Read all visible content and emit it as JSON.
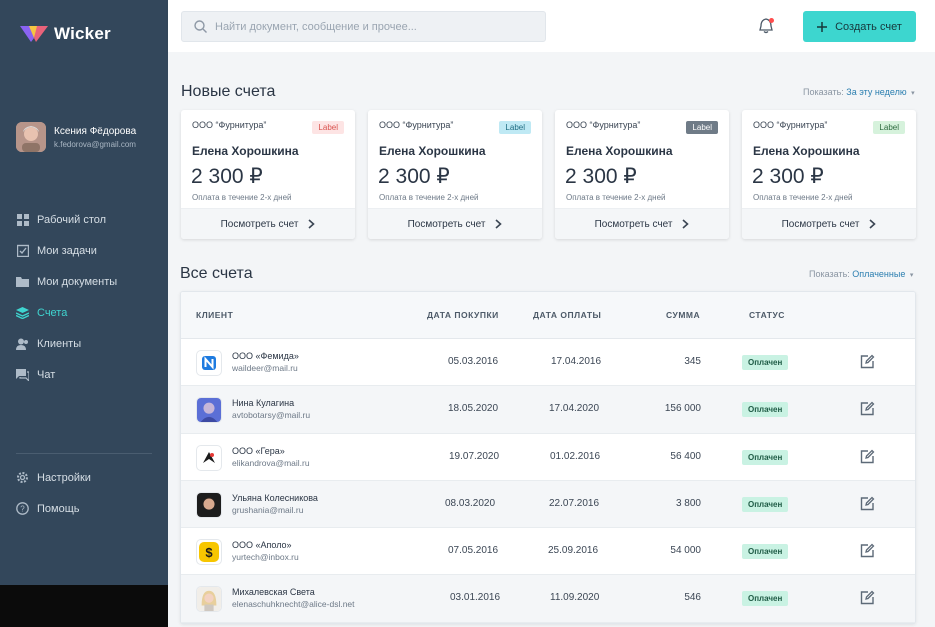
{
  "app": {
    "name": "Wicker"
  },
  "user": {
    "name": "Ксения Фёдорова",
    "email": "k.fedorova@gmail.com"
  },
  "nav": {
    "items": [
      {
        "label": "Рабочий стол",
        "icon": "dashboard-icon"
      },
      {
        "label": "Мои задачи",
        "icon": "tasks-icon"
      },
      {
        "label": "Мои документы",
        "icon": "folder-icon"
      },
      {
        "label": "Счета",
        "icon": "layers-icon",
        "active": true
      },
      {
        "label": "Клиенты",
        "icon": "users-icon"
      },
      {
        "label": "Чат",
        "icon": "chat-icon"
      }
    ],
    "bottom": [
      {
        "label": "Настройки",
        "icon": "gear-icon"
      },
      {
        "label": "Помощь",
        "icon": "help-icon"
      }
    ]
  },
  "search": {
    "placeholder": "Найти документ, сообщение и прочее..."
  },
  "create_button": {
    "label": "Создать счет"
  },
  "new_invoices": {
    "title": "Новые счета",
    "filter_label": "Показать:",
    "filter_value": "За эту неделю",
    "cards": [
      {
        "company": "ООО “Фурнитура”",
        "badge": "Label",
        "badge_bg": "#fde4e4",
        "badge_fg": "#d9534f",
        "name": "Елена Хорошкина",
        "amount": "2 300 ₽",
        "note": "Оплата в течение 2-х дней",
        "action": "Посмотреть счет"
      },
      {
        "company": "ООО “Фурнитура”",
        "badge": "Label",
        "badge_bg": "#bfe9f4",
        "badge_fg": "#1e6c82",
        "name": "Елена Хорошкина",
        "amount": "2 300 ₽",
        "note": "Оплата в течение 2-х дней",
        "action": "Посмотреть счет"
      },
      {
        "company": "ООО “Фурнитура”",
        "badge": "Label",
        "badge_bg": "#6f7b87",
        "badge_fg": "#ffffff",
        "name": "Елена Хорошкина",
        "amount": "2 300 ₽",
        "note": "Оплата в течение 2-х дней",
        "action": "Посмотреть счет"
      },
      {
        "company": "ООО “Фурнитура”",
        "badge": "Label",
        "badge_bg": "#d6f2dc",
        "badge_fg": "#2d6a3e",
        "name": "Елена Хорошкина",
        "amount": "2 300 ₽",
        "note": "Оплата в течение 2-х дней",
        "action": "Посмотреть счет"
      }
    ]
  },
  "all_invoices": {
    "title": "Все счета",
    "filter_label": "Показать:",
    "filter_value": "Оплаченные",
    "columns": {
      "client": "КЛИЕНТ",
      "purchase": "ДАТА ПОКУПКИ",
      "payment": "ДАТА ОПЛАТЫ",
      "sum": "СУММА",
      "status": "СТАТУС"
    },
    "rows": [
      {
        "name": "ООО «Фемида»",
        "email": "waildeer@mail.ru",
        "purchase": "05.03.2016",
        "payment": "17.04.2016",
        "sum": "345",
        "status": "Оплачен",
        "logo": "femida-logo"
      },
      {
        "name": "Нина Кулагина",
        "email": "avtobotarsy@mail.ru",
        "purchase": "18.05.2020",
        "payment": "17.04.2020",
        "sum": "156 000",
        "status": "Оплачен",
        "logo": "avatar"
      },
      {
        "name": "ООО «Гера»",
        "email": "elikandrova@mail.ru",
        "purchase": "19.07.2020",
        "payment": "01.02.2016",
        "sum": "56 400",
        "status": "Оплачен",
        "logo": "gera-logo"
      },
      {
        "name": "Ульяна Колесникова",
        "email": "grushania@mail.ru",
        "purchase": "08.03.2020",
        "payment": "22.07.2016",
        "sum": "3 800",
        "status": "Оплачен",
        "logo": "avatar"
      },
      {
        "name": "ООО «Аполо»",
        "email": "yurtech@inbox.ru",
        "purchase": "07.05.2016",
        "payment": "25.09.2016",
        "sum": "54 000",
        "status": "Оплачен",
        "logo": "apolo-logo"
      },
      {
        "name": "Михалевская Света",
        "email": "elenaschuhknecht@alice-dsl.net",
        "purchase": "03.01.2016",
        "payment": "11.09.2020",
        "sum": "546",
        "status": "Оплачен",
        "logo": "avatar"
      }
    ]
  },
  "colors": {
    "sidebar": "#33475b",
    "accent": "#3dd6cf",
    "status_bg": "#c9f2e3"
  }
}
